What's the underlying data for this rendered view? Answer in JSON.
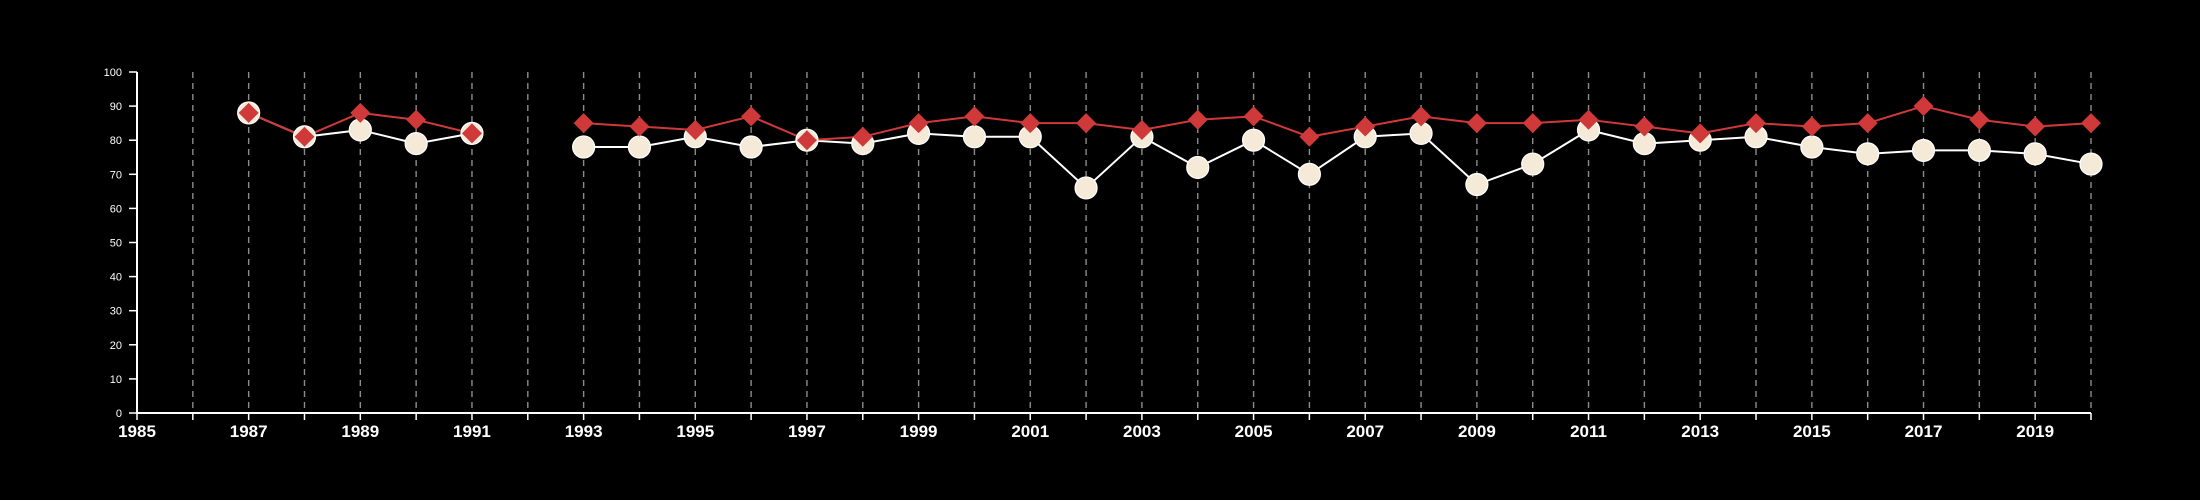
{
  "chart_data": {
    "type": "line",
    "xlim": [
      1985,
      2020
    ],
    "ylim": [
      0,
      100
    ],
    "y_ticks": [
      "0",
      "10",
      "20",
      "30",
      "40",
      "50",
      "60",
      "70",
      "80",
      "90",
      "100"
    ],
    "x_ticks": [
      "1985",
      "1987",
      "1989",
      "1991",
      "1993",
      "1995",
      "1997",
      "1999",
      "2001",
      "2003",
      "2005",
      "2007",
      "2009",
      "2011",
      "2013",
      "2015",
      "2017",
      "2019"
    ],
    "grid": "vertical dashed lines at every year",
    "colors": {
      "background": "#000000",
      "axis": "#ffffff",
      "grid": "#8c8c8c"
    },
    "series": [
      {
        "marker": "circle",
        "color": "#ffffff",
        "marker_fill": "#f5ead8",
        "x": [
          1987,
          1988,
          1989,
          1990,
          1991,
          1993,
          1994,
          1995,
          1996,
          1997,
          1998,
          1999,
          2000,
          2001,
          2002,
          2003,
          2004,
          2005,
          2006,
          2007,
          2008,
          2009,
          2010,
          2011,
          2012,
          2013,
          2014,
          2015,
          2016,
          2017,
          2018,
          2019,
          2020
        ],
        "values": [
          88,
          81,
          83,
          79,
          82,
          78,
          78,
          81,
          78,
          80,
          79,
          82,
          81,
          81,
          66,
          81,
          72,
          80,
          70,
          81,
          82,
          67,
          73,
          83,
          79,
          80,
          81,
          78,
          76,
          77,
          77,
          76,
          73
        ]
      },
      {
        "marker": "diamond",
        "color": "#d0393a",
        "x": [
          1987,
          1988,
          1989,
          1990,
          1991,
          1993,
          1994,
          1995,
          1996,
          1997,
          1998,
          1999,
          2000,
          2001,
          2002,
          2003,
          2004,
          2005,
          2006,
          2007,
          2008,
          2009,
          2010,
          2011,
          2012,
          2013,
          2014,
          2015,
          2016,
          2017,
          2018,
          2019,
          2020
        ],
        "values": [
          88,
          81,
          88,
          86,
          82,
          85,
          84,
          83,
          87,
          80,
          81,
          85,
          87,
          85,
          85,
          83,
          86,
          87,
          81,
          84,
          87,
          85,
          85,
          86,
          84,
          82,
          85,
          84,
          85,
          90,
          86,
          84,
          85
        ]
      }
    ]
  }
}
